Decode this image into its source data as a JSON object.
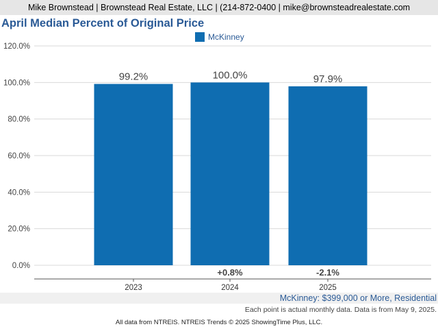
{
  "header": {
    "contact": "Mike Brownstead | Brownstead Real Estate, LLC | (214-872-0400 | mike@brownsteadrealestate.com"
  },
  "chart_data": {
    "type": "bar",
    "title": "April Median Percent of Original Price",
    "categories": [
      "2023",
      "2024",
      "2025"
    ],
    "series": [
      {
        "name": "McKinney",
        "values": [
          99.2,
          100.0,
          97.9
        ],
        "color": "#0f6db1"
      }
    ],
    "data_labels": [
      "99.2%",
      "100.0%",
      "97.9%"
    ],
    "change_labels": [
      "",
      "+0.8%",
      "-2.1%"
    ],
    "y_ticks": [
      "0.0%",
      "20.0%",
      "40.0%",
      "60.0%",
      "80.0%",
      "100.0%",
      "120.0%"
    ],
    "ylim": [
      0,
      120
    ],
    "grid": true,
    "legend_position": "top-center"
  },
  "footer": {
    "subtitle": "McKinney: $399,000 or More, Residential",
    "note": "Each point is actual monthly data. Data is from May 9, 2025.",
    "credit": "All data from NTREIS. NTREIS Trends © 2025 ShowingTime Plus, LLC."
  }
}
